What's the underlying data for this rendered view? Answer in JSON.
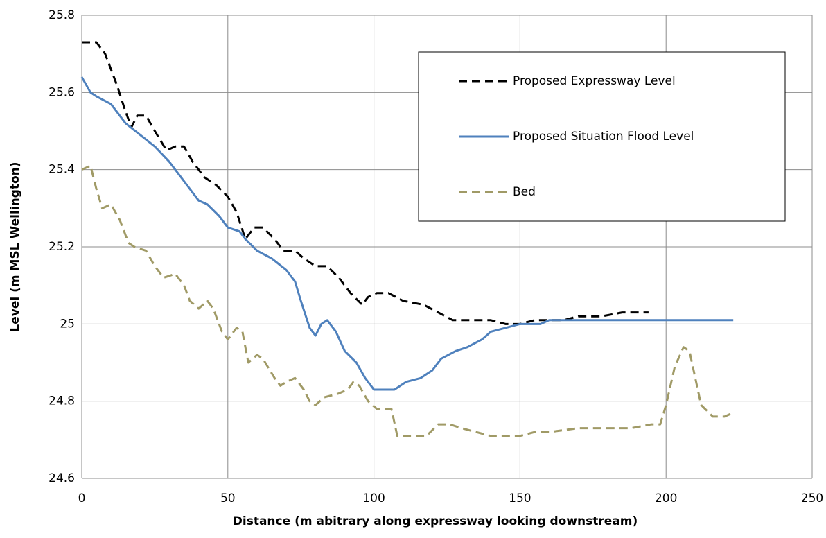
{
  "chart_data": {
    "type": "line",
    "x_label": "Distance (m abitrary along expressway looking downstream)",
    "y_label": "Level (m MSL Wellington)",
    "xlim": [
      0,
      250
    ],
    "xticks": [
      0,
      50,
      100,
      150,
      200,
      250
    ],
    "ylim": [
      24.6,
      25.8
    ],
    "yticks": [
      24.6,
      24.8,
      25,
      25.2,
      25.4,
      25.6,
      25.8
    ],
    "grid": true,
    "legend": "upper right",
    "series": [
      {
        "name": "Proposed Expressway Level",
        "color": "#000000",
        "dash": "dashed",
        "x": [
          0,
          5,
          8,
          12,
          15,
          17,
          19,
          22,
          25,
          29,
          32,
          35,
          38,
          42,
          46,
          50,
          53,
          56,
          59,
          62,
          66,
          69,
          73,
          76,
          80,
          84,
          88,
          92,
          96,
          98,
          101,
          105,
          110,
          117,
          122,
          127,
          133,
          140,
          145,
          150,
          155,
          160,
          165,
          170,
          178,
          185,
          194
        ],
        "values": [
          25.73,
          25.73,
          25.7,
          25.62,
          25.55,
          25.51,
          25.54,
          25.54,
          25.5,
          25.45,
          25.46,
          25.46,
          25.42,
          25.38,
          25.36,
          25.33,
          25.29,
          25.22,
          25.25,
          25.25,
          25.22,
          25.19,
          25.19,
          25.17,
          25.15,
          25.15,
          25.12,
          25.08,
          25.05,
          25.07,
          25.08,
          25.08,
          25.06,
          25.05,
          25.03,
          25.01,
          25.01,
          25.01,
          25.0,
          25.0,
          25.01,
          25.01,
          25.01,
          25.02,
          25.02,
          25.03,
          25.03
        ]
      },
      {
        "name": "Proposed Situation Flood Level",
        "color": "#4f81bd",
        "dash": "solid",
        "x": [
          0,
          3,
          5,
          10,
          15,
          20,
          25,
          30,
          35,
          40,
          43,
          47,
          50,
          54,
          56,
          60,
          65,
          70,
          73,
          75,
          78,
          80,
          82,
          84,
          87,
          90,
          94,
          97,
          100,
          103,
          107,
          111,
          116,
          120,
          123,
          128,
          132,
          137,
          140,
          145,
          150,
          157,
          160,
          170,
          200,
          223
        ],
        "values": [
          25.64,
          25.6,
          25.59,
          25.57,
          25.52,
          25.49,
          25.46,
          25.42,
          25.37,
          25.32,
          25.31,
          25.28,
          25.25,
          25.24,
          25.22,
          25.19,
          25.17,
          25.14,
          25.11,
          25.06,
          24.99,
          24.97,
          25.0,
          25.01,
          24.98,
          24.93,
          24.9,
          24.86,
          24.83,
          24.83,
          24.83,
          24.85,
          24.86,
          24.88,
          24.91,
          24.93,
          24.94,
          24.96,
          24.98,
          24.99,
          25.0,
          25.0,
          25.01,
          25.01,
          25.01,
          25.01
        ]
      },
      {
        "name": "Bed",
        "color": "#a09a66",
        "dash": "dashed",
        "x": [
          0,
          3,
          5,
          7,
          10,
          13,
          16,
          18,
          22,
          25,
          28,
          32,
          35,
          37,
          40,
          43,
          45,
          48,
          50,
          53,
          55,
          57,
          60,
          62,
          66,
          68,
          70,
          73,
          76,
          78,
          80,
          83,
          88,
          91,
          93,
          95,
          98,
          101,
          106,
          108,
          112,
          118,
          122,
          126,
          130,
          140,
          150,
          155,
          160,
          170,
          180,
          188,
          195,
          198,
          200,
          203,
          206,
          208,
          210,
          212,
          216,
          220,
          223
        ],
        "values": [
          25.4,
          25.41,
          25.35,
          25.3,
          25.31,
          25.27,
          25.21,
          25.2,
          25.19,
          25.15,
          25.12,
          25.13,
          25.1,
          25.06,
          25.04,
          25.06,
          25.04,
          24.98,
          24.96,
          24.99,
          24.98,
          24.9,
          24.92,
          24.91,
          24.86,
          24.84,
          24.85,
          24.86,
          24.83,
          24.8,
          24.79,
          24.81,
          24.82,
          24.83,
          24.85,
          24.84,
          24.8,
          24.78,
          24.78,
          24.71,
          24.71,
          24.71,
          24.74,
          24.74,
          24.73,
          24.71,
          24.71,
          24.72,
          24.72,
          24.73,
          24.73,
          24.73,
          24.74,
          24.74,
          24.79,
          24.89,
          24.94,
          24.93,
          24.86,
          24.79,
          24.76,
          24.76,
          24.77
        ]
      }
    ]
  }
}
